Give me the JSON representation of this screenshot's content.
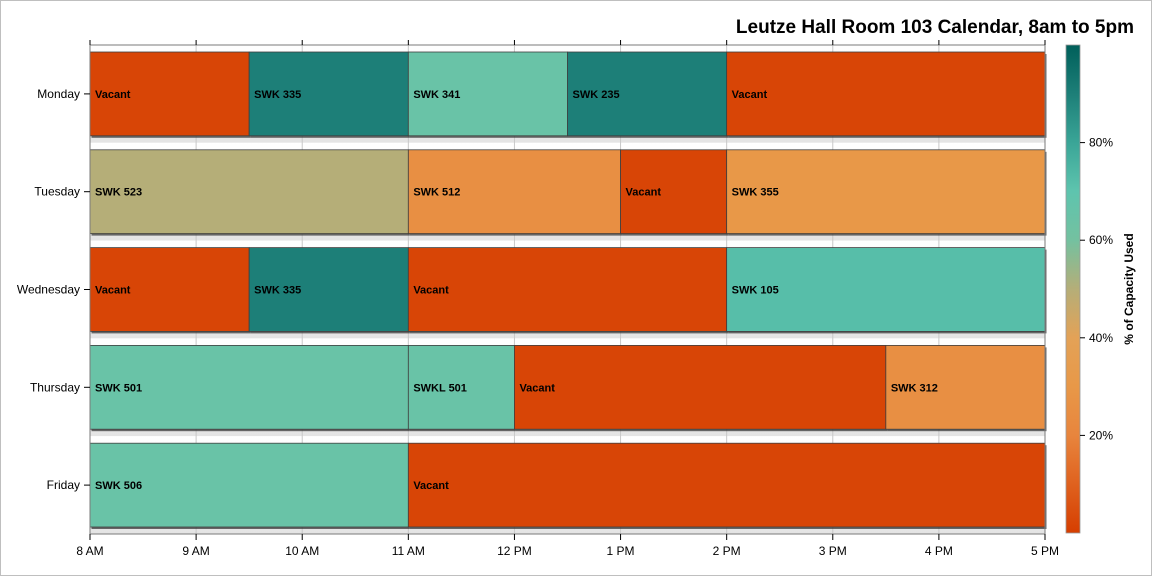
{
  "chart_data": {
    "type": "bar",
    "orientation": "horizontal-timeline",
    "title": "Leutze Hall Room 103 Calendar, 8am to 5pm",
    "x_ticks": [
      "8 AM",
      "9 AM",
      "10 AM",
      "11 AM",
      "12 PM",
      "1 PM",
      "2 PM",
      "3 PM",
      "4 PM",
      "5 PM"
    ],
    "xlim": [
      8,
      17
    ],
    "categories": [
      "Monday",
      "Tuesday",
      "Wednesday",
      "Thursday",
      "Friday"
    ],
    "bars": [
      {
        "day": "Monday",
        "label": "Vacant",
        "start": 8.0,
        "end": 9.5,
        "capacity_pct": 2
      },
      {
        "day": "Monday",
        "label": "SWK 335",
        "start": 9.5,
        "end": 11.0,
        "capacity_pct": 90
      },
      {
        "day": "Monday",
        "label": "SWK 341",
        "start": 11.0,
        "end": 12.5,
        "capacity_pct": 65
      },
      {
        "day": "Monday",
        "label": "SWK 235",
        "start": 12.5,
        "end": 14.0,
        "capacity_pct": 90
      },
      {
        "day": "Monday",
        "label": "Vacant",
        "start": 14.0,
        "end": 17.0,
        "capacity_pct": 2
      },
      {
        "day": "Tuesday",
        "label": "SWK 523",
        "start": 8.0,
        "end": 11.0,
        "capacity_pct": 50
      },
      {
        "day": "Tuesday",
        "label": "SWK 512",
        "start": 11.0,
        "end": 13.0,
        "capacity_pct": 25
      },
      {
        "day": "Tuesday",
        "label": "Vacant",
        "start": 13.0,
        "end": 14.0,
        "capacity_pct": 2
      },
      {
        "day": "Tuesday",
        "label": "SWK 355",
        "start": 14.0,
        "end": 17.0,
        "capacity_pct": 30
      },
      {
        "day": "Wednesday",
        "label": "Vacant",
        "start": 8.0,
        "end": 9.5,
        "capacity_pct": 2
      },
      {
        "day": "Wednesday",
        "label": "SWK 335",
        "start": 9.5,
        "end": 11.0,
        "capacity_pct": 90
      },
      {
        "day": "Wednesday",
        "label": "Vacant",
        "start": 11.0,
        "end": 14.0,
        "capacity_pct": 2
      },
      {
        "day": "Wednesday",
        "label": "SWK 105",
        "start": 14.0,
        "end": 17.0,
        "capacity_pct": 72
      },
      {
        "day": "Thursday",
        "label": "SWK 501",
        "start": 8.0,
        "end": 11.0,
        "capacity_pct": 65
      },
      {
        "day": "Thursday",
        "label": "SWKL 501",
        "start": 11.0,
        "end": 12.0,
        "capacity_pct": 65
      },
      {
        "day": "Thursday",
        "label": "Vacant",
        "start": 12.0,
        "end": 15.5,
        "capacity_pct": 2
      },
      {
        "day": "Thursday",
        "label": "SWK 312",
        "start": 15.5,
        "end": 17.0,
        "capacity_pct": 25
      },
      {
        "day": "Friday",
        "label": "SWK 506",
        "start": 8.0,
        "end": 11.0,
        "capacity_pct": 65
      },
      {
        "day": "Friday",
        "label": "Vacant",
        "start": 11.0,
        "end": 17.0,
        "capacity_pct": 2
      }
    ],
    "color_scale": {
      "title": "% of Capacity Used",
      "ticks": [
        "20%",
        "40%",
        "60%",
        "80%"
      ],
      "tick_values": [
        20,
        40,
        60,
        80
      ],
      "range": [
        0,
        100
      ],
      "stops": [
        {
          "value": 0,
          "color": "#d63e00"
        },
        {
          "value": 20,
          "color": "#e8853d"
        },
        {
          "value": 30,
          "color": "#e89848"
        },
        {
          "value": 40,
          "color": "#e3a257"
        },
        {
          "value": 50,
          "color": "#b5ae78"
        },
        {
          "value": 60,
          "color": "#74c1a0"
        },
        {
          "value": 70,
          "color": "#5ec4ae"
        },
        {
          "value": 80,
          "color": "#3aa597"
        },
        {
          "value": 90,
          "color": "#1d7f78"
        },
        {
          "value": 100,
          "color": "#005f5a"
        }
      ]
    },
    "grid": true,
    "legend_position": "right"
  }
}
